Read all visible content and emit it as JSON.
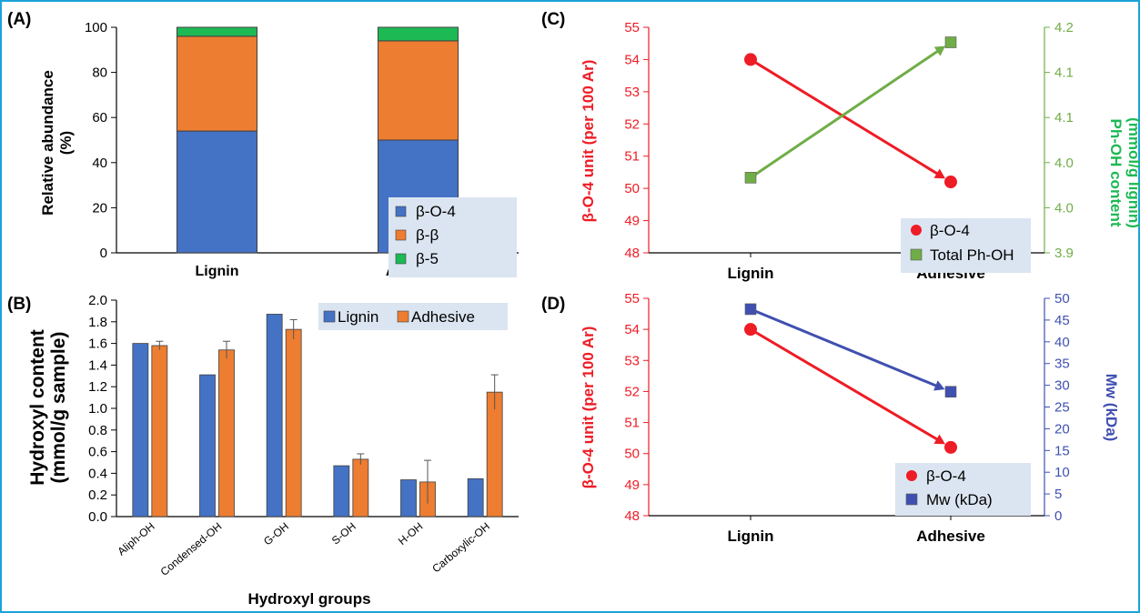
{
  "colors": {
    "frame": "#1ba3d9",
    "blue": "#4472c4",
    "orange": "#ed7d31",
    "green": "#1db954",
    "red": "#ee1c25",
    "lgreen": "#70ad47",
    "mw": "#4050b0",
    "legend_bg": "#dbe5f1"
  },
  "chart_data": [
    {
      "panel": "(A)",
      "type": "bar",
      "stacked": true,
      "categories": [
        "Lignin",
        "Adhesive"
      ],
      "series": [
        {
          "name": "β-O-4",
          "values": [
            54,
            50
          ],
          "color": "blue"
        },
        {
          "name": "β-β",
          "values": [
            42,
            44
          ],
          "color": "orange"
        },
        {
          "name": "β-5",
          "values": [
            4,
            6
          ],
          "color": "green"
        }
      ],
      "ylabel_lines": [
        "Relative abundance",
        "(%)"
      ],
      "ylim": [
        0,
        100
      ],
      "yticks": [
        "0",
        "20",
        "40",
        "60",
        "80",
        "100"
      ],
      "legend_position": "bottom-right"
    },
    {
      "panel": "(B)",
      "type": "bar",
      "categories": [
        "Aliph-OH",
        "Condensed-OH",
        "G-OH",
        "S-OH",
        "H-OH",
        "Carboxylic-OH"
      ],
      "series": [
        {
          "name": "Lignin",
          "values": [
            1.6,
            1.31,
            1.87,
            0.47,
            0.34,
            0.35
          ],
          "color": "blue"
        },
        {
          "name": "Adhesive",
          "values": [
            1.58,
            1.54,
            1.73,
            0.53,
            0.32,
            1.15
          ],
          "errors": [
            0.04,
            0.08,
            0.09,
            0.05,
            0.2,
            0.16
          ],
          "color": "orange"
        }
      ],
      "xlabel": "Hydroxyl groups",
      "ylabel_lines": [
        "Hydroxyl content",
        "(mmol/g sample)"
      ],
      "ylim": [
        0,
        2
      ],
      "yticks": [
        "0.0",
        "0.2",
        "0.4",
        "0.6",
        "0.8",
        "1.0",
        "1.2",
        "1.4",
        "1.6",
        "1.8",
        "2.0"
      ],
      "legend_position": "top-right"
    },
    {
      "panel": "(C)",
      "type": "line",
      "categories": [
        "Lignin",
        "Adhesive"
      ],
      "series": [
        {
          "name": "β-O-4",
          "values": [
            54.0,
            50.2
          ],
          "axis": "left",
          "color": "red",
          "marker": "circle"
        },
        {
          "name": "Total Ph-OH",
          "values": [
            4.0,
            4.18
          ],
          "axis": "right",
          "color": "lgreen",
          "marker": "square"
        }
      ],
      "ylabel_left": "β-O-4 unit (per 100 Ar)",
      "ylim_left": [
        48,
        55
      ],
      "yticks_left": [
        "48",
        "49",
        "50",
        "51",
        "52",
        "53",
        "54",
        "55"
      ],
      "ylabel_right_lines": [
        "Ph-OH content",
        "(mmol/g lignin)"
      ],
      "ylim_right": [
        3.9,
        4.2
      ],
      "yticks_right": [
        "3.9",
        "4.0",
        "4.0",
        "4.1",
        "4.1",
        "4.2"
      ],
      "legend_position": "bottom-right"
    },
    {
      "panel": "(D)",
      "type": "line",
      "categories": [
        "Lignin",
        "Adhesive"
      ],
      "series": [
        {
          "name": "β-O-4",
          "values": [
            54.0,
            50.2
          ],
          "axis": "left",
          "color": "red",
          "marker": "circle"
        },
        {
          "name": "Mw (kDa)",
          "values": [
            47.5,
            28.5
          ],
          "axis": "right",
          "color": "mw",
          "marker": "square"
        }
      ],
      "ylabel_left": "β-O-4 unit (per 100 Ar)",
      "ylim_left": [
        48,
        55
      ],
      "yticks_left": [
        "48",
        "49",
        "50",
        "51",
        "52",
        "53",
        "54",
        "55"
      ],
      "ylabel_right": "Mw (kDa)",
      "ylim_right": [
        0,
        50
      ],
      "yticks_right": [
        "0",
        "5",
        "10",
        "15",
        "20",
        "25",
        "30",
        "35",
        "40",
        "45",
        "50"
      ],
      "legend_position": "bottom-right"
    }
  ]
}
